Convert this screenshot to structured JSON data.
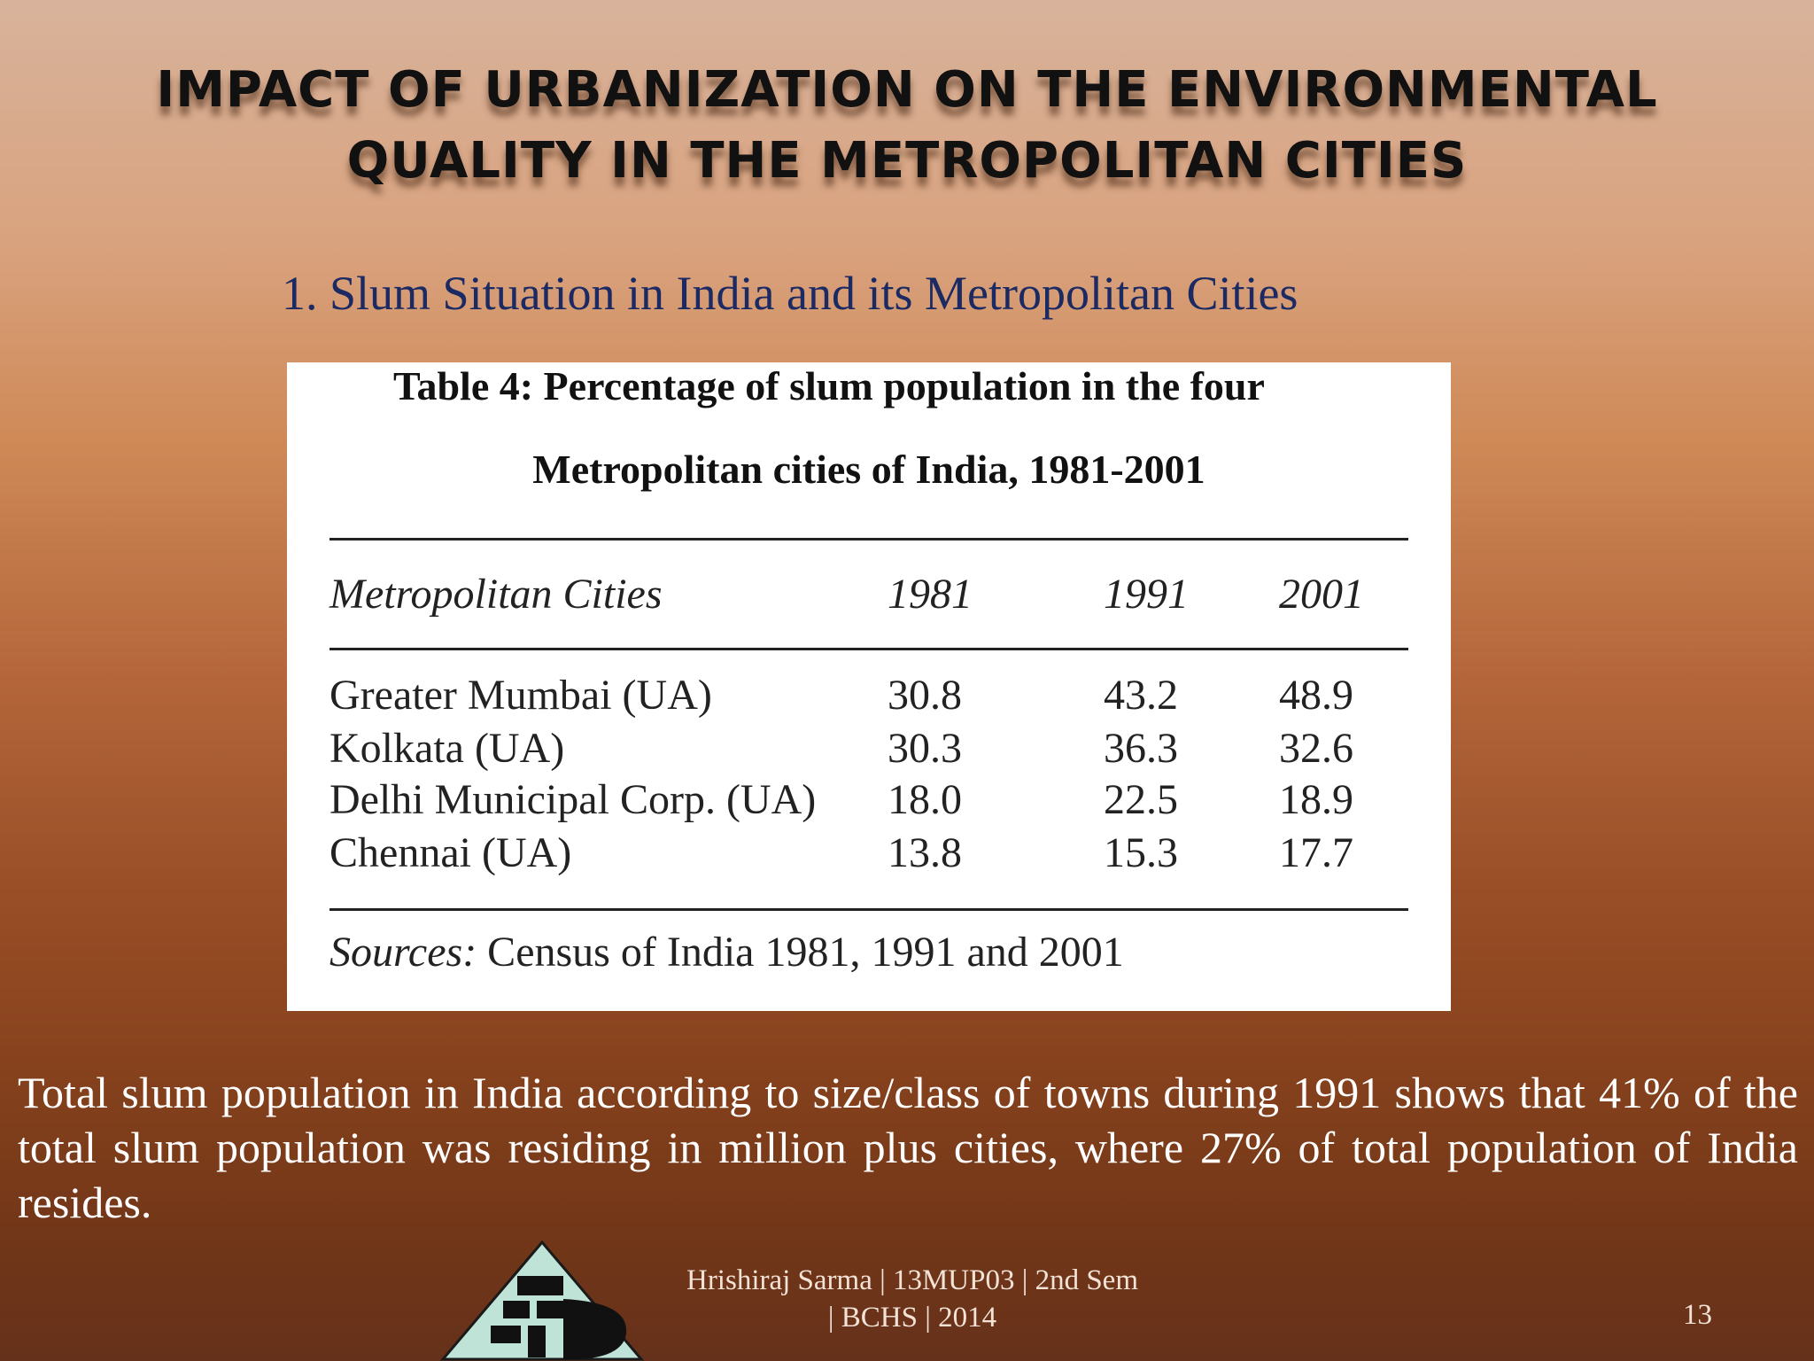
{
  "slide": {
    "title_line1": "IMPACT OF URBANIZATION ON THE ENVIRONMENTAL",
    "title_line2": "QUALITY IN THE METROPOLITAN CITIES",
    "subtitle": "1. Slum Situation in India and its Metropolitan Cities"
  },
  "table": {
    "caption_line1": "Table 4: Percentage of slum population in the four",
    "caption_line2": "Metropolitan cities of India, 1981-2001",
    "headers": [
      "Metropolitan Cities",
      "1981",
      "1991",
      "2001"
    ],
    "rows": [
      [
        "Greater Mumbai (UA)",
        "30.8",
        "43.2",
        "48.9"
      ],
      [
        "Kolkata (UA)",
        "30.3",
        "36.3",
        "32.6"
      ],
      [
        "Delhi Municipal Corp. (UA)",
        "18.0",
        "22.5",
        "18.9"
      ],
      [
        "Chennai (UA)",
        "13.8",
        "15.3",
        "17.7"
      ]
    ],
    "source_label": "Sources:",
    "source_text": " Census of India 1981, 1991 and 2001"
  },
  "body_text": "Total slum population in India according to size/class of towns during 1991 shows that 41% of the total slum population was residing in million plus cities, where 27% of total population of India resides.",
  "footer": {
    "line1": "Hrishiraj Sarma | 13MUP03 | 2nd Sem",
    "line2": "| BCHS | 2014",
    "page_number": "13"
  },
  "colors": {
    "subtitle": "#1b2a63",
    "title": "#111111",
    "body_text": "#ffffff"
  }
}
